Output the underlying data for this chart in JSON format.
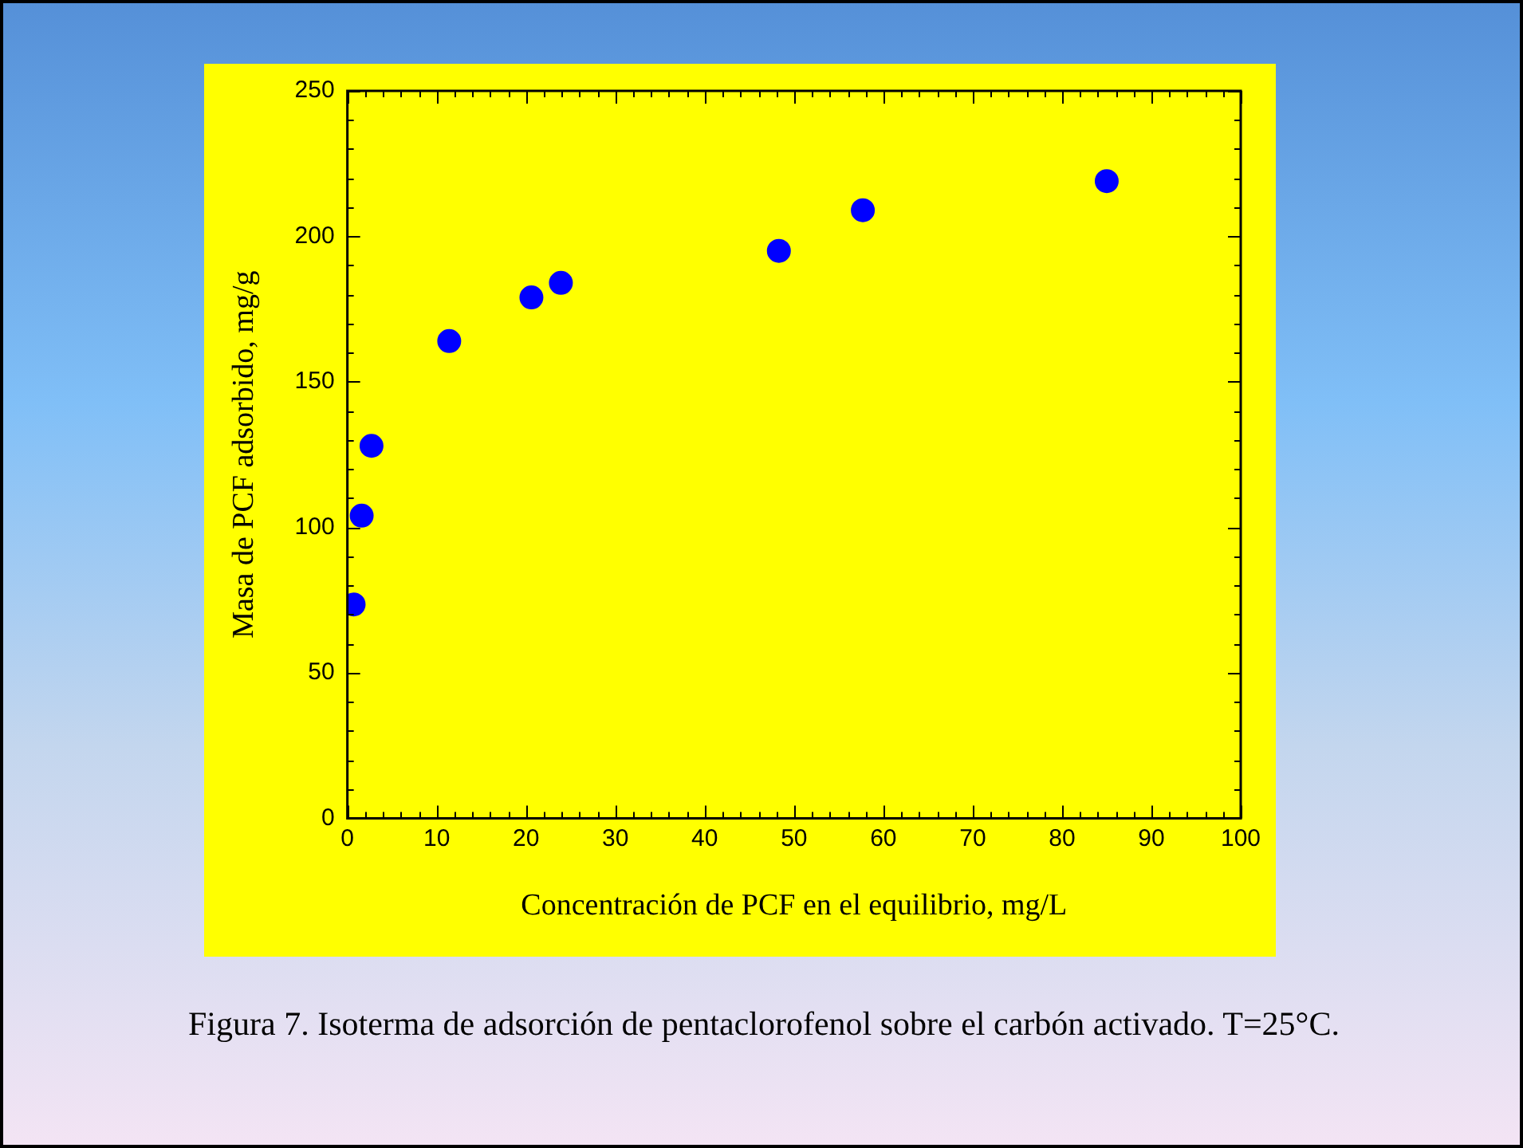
{
  "chart_data": {
    "type": "scatter",
    "xlabel": "Concentración de PCF en el equilibrio, mg/L",
    "ylabel": "Masa de PCF adsorbido, mg/g",
    "annotations": [
      "Figura 7. Isoterma de adsorción de pentaclorofenol sobre el carbón activado. T=25°C."
    ],
    "x": [
      0.7,
      1.6,
      2.7,
      11.4,
      20.6,
      23.9,
      48.3,
      57.7,
      85
    ],
    "series": [
      {
        "color": "#0000ff",
        "values": [
          73.5,
          104,
          128,
          164,
          179,
          184,
          195,
          209,
          219
        ]
      }
    ],
    "xlim": [
      0,
      100
    ],
    "xticks": [
      0,
      10,
      20,
      30,
      40,
      50,
      60,
      70,
      80,
      90,
      100
    ],
    "ylim": [
      0,
      250
    ],
    "yticks": [
      0,
      50,
      100,
      150,
      200,
      250
    ],
    "grid": false,
    "legend": false,
    "marker": "circle"
  }
}
